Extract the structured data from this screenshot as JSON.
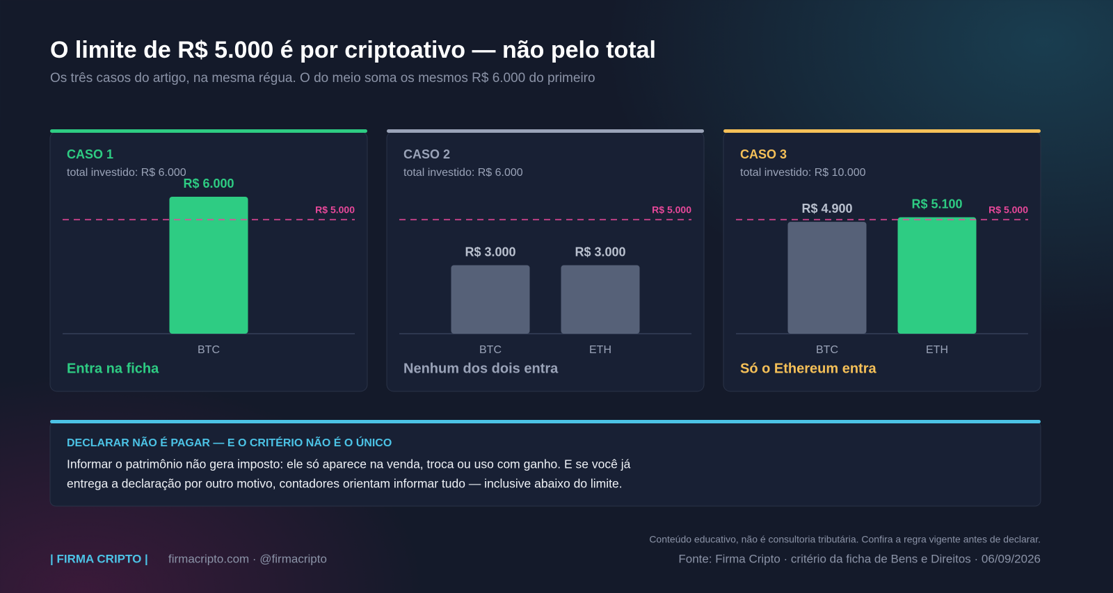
{
  "header": {
    "title": "O limite de R$ 5.000 é por criptoativo — não pelo total",
    "subtitle": "Os três casos do artigo, na mesma régua. O do meio soma os mesmos R$ 6.000 do primeiro"
  },
  "chart_data": [
    {
      "type": "bar",
      "title": "CASO 1",
      "subtitle": "total investido: R$ 6.000",
      "accent": "#2ecc83",
      "categories": [
        "BTC"
      ],
      "values": [
        6000
      ],
      "value_labels": [
        "R$ 6.000"
      ],
      "colors": [
        "#2ecc83"
      ],
      "label_colors": [
        "#2ecc83"
      ],
      "ylim": [
        0,
        6000
      ],
      "threshold": {
        "value": 5000,
        "label": "R$ 5.000",
        "color": "#e8489a"
      },
      "verdict": "Entra na ficha"
    },
    {
      "type": "bar",
      "title": "CASO 2",
      "subtitle": "total investido: R$ 6.000",
      "accent": "#9aa3b8",
      "categories": [
        "BTC",
        "ETH"
      ],
      "values": [
        3000,
        3000
      ],
      "value_labels": [
        "R$ 3.000",
        "R$ 3.000"
      ],
      "colors": [
        "#566178",
        "#566178"
      ],
      "label_colors": [
        "#b9c0ce",
        "#b9c0ce"
      ],
      "ylim": [
        0,
        6000
      ],
      "threshold": {
        "value": 5000,
        "label": "R$ 5.000",
        "color": "#e8489a"
      },
      "verdict": "Nenhum dos dois entra"
    },
    {
      "type": "bar",
      "title": "CASO 3",
      "subtitle": "total investido: R$ 10.000",
      "accent": "#f5c058",
      "categories": [
        "BTC",
        "ETH"
      ],
      "values": [
        4900,
        5100
      ],
      "value_labels": [
        "R$ 4.900",
        "R$ 5.100"
      ],
      "colors": [
        "#566178",
        "#2ecc83"
      ],
      "label_colors": [
        "#b9c0ce",
        "#2ecc83"
      ],
      "ylim": [
        0,
        6000
      ],
      "threshold": {
        "value": 5000,
        "label": "R$ 5.000",
        "color": "#e8489a"
      },
      "verdict": "Só o Ethereum entra"
    }
  ],
  "note": {
    "title": "DECLARAR NÃO É PAGAR — E O CRITÉRIO NÃO É O ÚNICO",
    "lines": [
      "Informar o patrimônio não gera imposto: ele só aparece na venda, troca ou uso com ganho. E se você já",
      "entrega a declaração por outro motivo, contadores orientam informar tudo — inclusive abaixo do limite."
    ]
  },
  "footer": {
    "brand": "| FIRMA CRIPTO |",
    "links": "firmacripto.com · @firmacripto",
    "disclaimer": "Conteúdo educativo, não é consultoria tributária. Confira a regra vigente antes de declarar.",
    "source": "Fonte: Firma Cripto · critério da ficha de Bens e Direitos · 06/09/2026"
  }
}
